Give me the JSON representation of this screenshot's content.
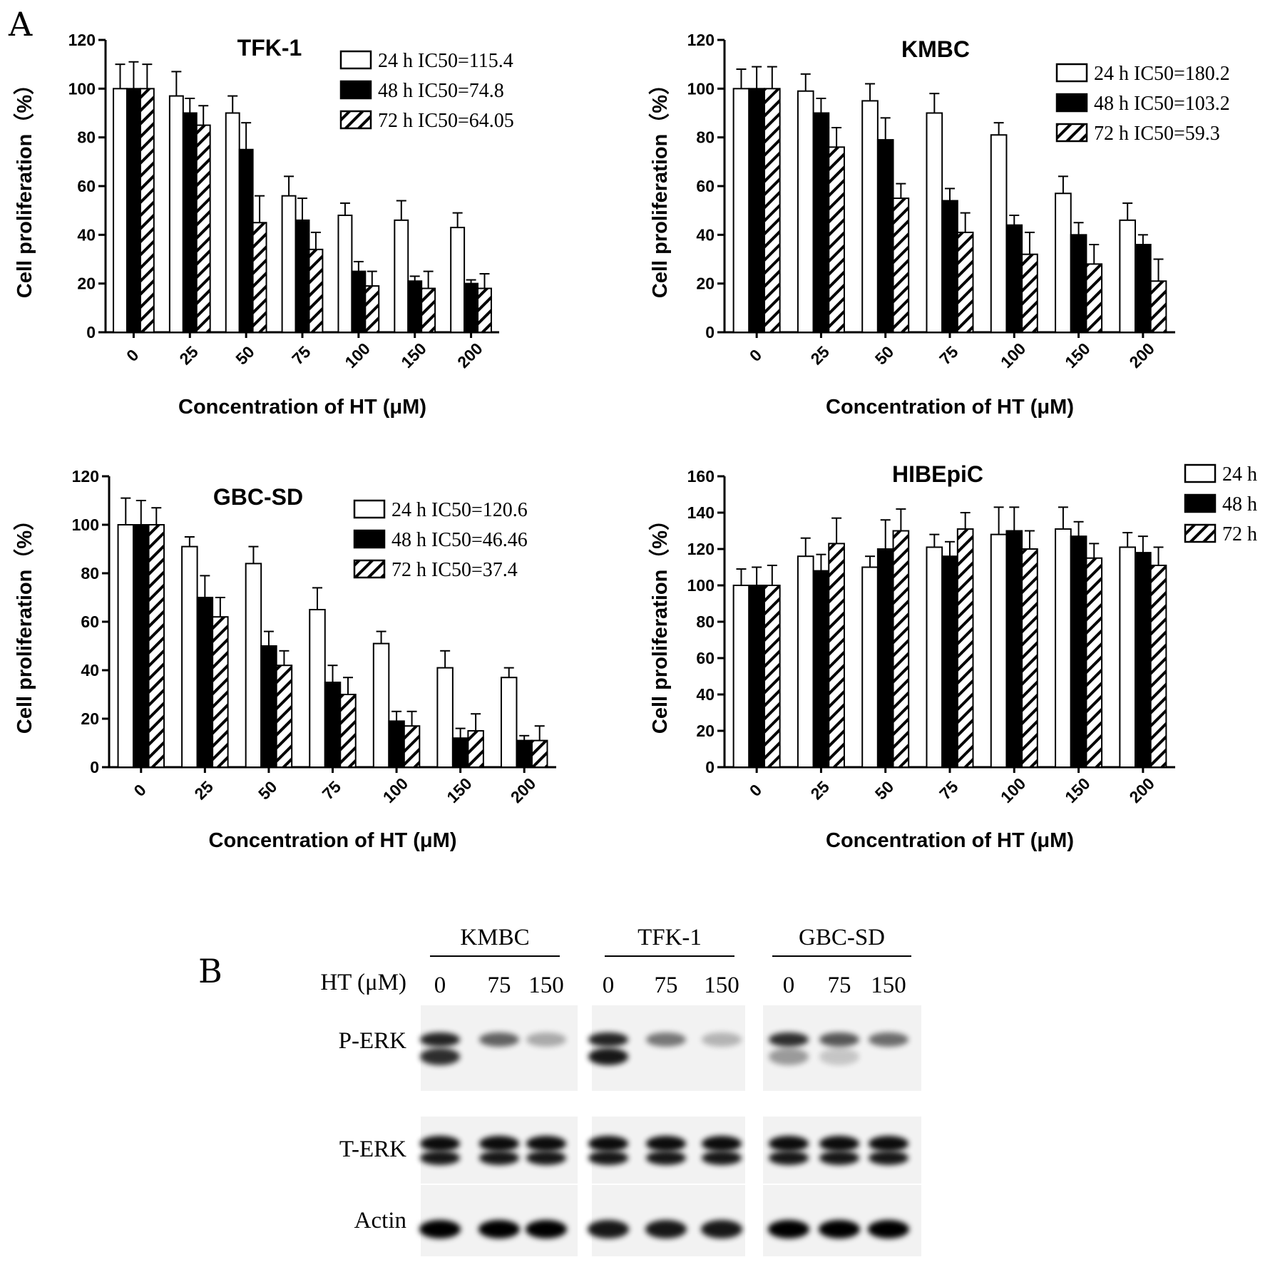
{
  "panel_labels": {
    "a": "A",
    "b": "B"
  },
  "colors": {
    "bar_24h": "#ffffff",
    "bar_48h": "#000000",
    "bar_72h_hatch": "#000000",
    "outline": "#000000"
  },
  "chart_data": [
    {
      "type": "bar",
      "title": "TFK-1",
      "xlabel": "Concentration of HT (μM)",
      "ylabel": "Cell proliferation（%）",
      "categories": [
        "0",
        "25",
        "50",
        "75",
        "100",
        "150",
        "200"
      ],
      "ylim": [
        0,
        120
      ],
      "yticks": [
        "0",
        "20",
        "40",
        "60",
        "80",
        "100",
        "120"
      ],
      "legend_position": "top-right",
      "series": [
        {
          "name": "24 h  IC50=115.4",
          "fill": "white",
          "values": [
            100,
            97,
            90,
            56,
            48,
            46,
            43
          ],
          "errors": [
            10,
            10,
            7,
            8,
            5,
            8,
            6
          ]
        },
        {
          "name": "48 h  IC50=74.8",
          "fill": "black",
          "values": [
            100,
            90,
            75,
            46,
            25,
            21,
            20
          ],
          "errors": [
            11,
            6,
            11,
            9,
            4,
            2,
            1.5
          ]
        },
        {
          "name": "72 h  IC50=64.05",
          "fill": "hatch",
          "values": [
            100,
            85,
            45,
            34,
            19,
            18,
            18
          ],
          "errors": [
            10,
            8,
            11,
            7,
            6,
            7,
            6
          ]
        }
      ]
    },
    {
      "type": "bar",
      "title": "KMBC",
      "xlabel": "Concentration of HT (μM)",
      "ylabel": "Cell proliferation（%）",
      "categories": [
        "0",
        "25",
        "50",
        "75",
        "100",
        "150",
        "200"
      ],
      "ylim": [
        0,
        120
      ],
      "yticks": [
        "0",
        "20",
        "40",
        "60",
        "80",
        "100",
        "120"
      ],
      "legend_position": "top-right",
      "series": [
        {
          "name": "24 h IC50=180.2",
          "fill": "white",
          "values": [
            100,
            99,
            95,
            90,
            81,
            57,
            46
          ],
          "errors": [
            8,
            7,
            7,
            8,
            5,
            7,
            7
          ]
        },
        {
          "name": "48 h IC50=103.2",
          "fill": "black",
          "values": [
            100,
            90,
            79,
            54,
            44,
            40,
            36
          ],
          "errors": [
            9,
            6,
            9,
            5,
            4,
            5,
            4
          ]
        },
        {
          "name": "72 h IC50=59.3",
          "fill": "hatch",
          "values": [
            100,
            76,
            55,
            41,
            32,
            28,
            21
          ],
          "errors": [
            9,
            8,
            6,
            8,
            9,
            8,
            9
          ]
        }
      ]
    },
    {
      "type": "bar",
      "title": "GBC-SD",
      "xlabel": "Concentration of HT (μM)",
      "ylabel": "Cell proliferation（%）",
      "categories": [
        "0",
        "25",
        "50",
        "75",
        "100",
        "150",
        "200"
      ],
      "ylim": [
        0,
        120
      ],
      "yticks": [
        "0",
        "20",
        "40",
        "60",
        "80",
        "100",
        "120"
      ],
      "legend_position": "top-right",
      "series": [
        {
          "name": "24 h IC50=120.6",
          "fill": "white",
          "values": [
            100,
            91,
            84,
            65,
            51,
            41,
            37
          ],
          "errors": [
            11,
            4,
            7,
            9,
            5,
            7,
            4
          ]
        },
        {
          "name": "48 h IC50=46.46",
          "fill": "black",
          "values": [
            100,
            70,
            50,
            35,
            19,
            12,
            11
          ],
          "errors": [
            10,
            9,
            6,
            7,
            4,
            4,
            2
          ]
        },
        {
          "name": "72 h IC50=37.4",
          "fill": "hatch",
          "values": [
            100,
            62,
            42,
            30,
            17,
            15,
            11
          ],
          "errors": [
            7,
            8,
            6,
            7,
            6,
            7,
            6
          ]
        }
      ]
    },
    {
      "type": "bar",
      "title": "HIBEpiC",
      "xlabel": "Concentration of HT (μM)",
      "ylabel": "Cell proliferation（%）",
      "categories": [
        "0",
        "25",
        "50",
        "75",
        "100",
        "150",
        "200"
      ],
      "ylim": [
        0,
        160
      ],
      "yticks": [
        "0",
        "20",
        "40",
        "60",
        "80",
        "100",
        "120",
        "140",
        "160"
      ],
      "legend_position": "right",
      "series": [
        {
          "name": "24 h",
          "fill": "white",
          "values": [
            100,
            116,
            110,
            121,
            128,
            131,
            121
          ],
          "errors": [
            9,
            10,
            6,
            7,
            15,
            12,
            8
          ]
        },
        {
          "name": "48 h",
          "fill": "black",
          "values": [
            100,
            108,
            120,
            116,
            130,
            127,
            118
          ],
          "errors": [
            10,
            9,
            16,
            8,
            13,
            8,
            9
          ]
        },
        {
          "name": "72 h",
          "fill": "hatch",
          "values": [
            100,
            123,
            130,
            131,
            120,
            115,
            111
          ],
          "errors": [
            11,
            14,
            12,
            9,
            10,
            8,
            10
          ]
        }
      ]
    }
  ],
  "western_blot": {
    "treatment_label": "HT (μM)",
    "cell_lines": [
      {
        "name": "KMBC",
        "doses": [
          "0",
          "75",
          "150"
        ]
      },
      {
        "name": "TFK-1",
        "doses": [
          "0",
          "75",
          "150"
        ]
      },
      {
        "name": "GBC-SD",
        "doses": [
          "0",
          "75",
          "150"
        ]
      }
    ],
    "rows": [
      {
        "label": "P-ERK"
      },
      {
        "label": "T-ERK"
      },
      {
        "label": "Actin"
      }
    ]
  }
}
